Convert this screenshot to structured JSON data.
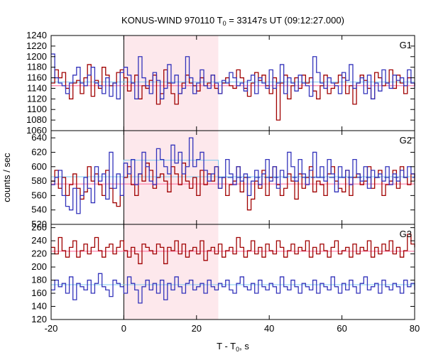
{
  "chart_data": {
    "type": "line",
    "title": {
      "prefix": "KONUS-WIND 970110 T",
      "sub": "0",
      "suffix": " = 33147s UT (09:12:27.000)"
    },
    "xlabel": {
      "prefix": "T - T",
      "sub": "0",
      "suffix": ", s"
    },
    "ylabel": "counts / sec",
    "xlim": [
      -20,
      80
    ],
    "x_ticks": [
      -20,
      0,
      20,
      40,
      60,
      80
    ],
    "highlight_interval": [
      0,
      26
    ],
    "colors": {
      "red": "#a00000",
      "blue": "#3333bb",
      "pink": "#ff6699",
      "cyan": "#7ec8f0",
      "highlight": "#fde8ec"
    },
    "panels": [
      {
        "name": "G1",
        "ylim": [
          1060,
          1240
        ],
        "y_ticks": [
          1060,
          1080,
          1100,
          1120,
          1140,
          1160,
          1180,
          1200,
          1220,
          1240
        ],
        "background_red": 1145,
        "background_blue": 1152,
        "series": [
          {
            "color": "red",
            "x_start": -20,
            "step": 1,
            "values": [
              1150,
              1175,
              1160,
              1170,
              1140,
              1120,
              1150,
              1155,
              1130,
              1160,
              1185,
              1125,
              1155,
              1140,
              1180,
              1165,
              1145,
              1150,
              1170,
              1175,
              1160,
              1135,
              1150,
              1165,
              1120,
              1145,
              1140,
              1155,
              1165,
              1110,
              1130,
              1175,
              1150,
              1130,
              1110,
              1130,
              1150,
              1165,
              1150,
              1145,
              1135,
              1160,
              1145,
              1150,
              1165,
              1140,
              1130,
              1150,
              1160,
              1145,
              1140,
              1175,
              1160,
              1140,
              1125,
              1150,
              1170,
              1155,
              1165,
              1145,
              1130,
              1160,
              1080,
              1150,
              1165,
              1120,
              1145,
              1160,
              1140,
              1165,
              1150,
              1160,
              1135,
              1120,
              1145,
              1165,
              1130,
              1140,
              1150,
              1165,
              1160,
              1130,
              1145,
              1110,
              1150,
              1165,
              1155,
              1140,
              1120,
              1170,
              1160,
              1145,
              1150,
              1175,
              1140,
              1165,
              1150,
              1130,
              1160,
              1150,
              1145
            ]
          },
          {
            "color": "blue",
            "x_start": -20,
            "step": 1,
            "values": [
              1205,
              1160,
              1150,
              1145,
              1130,
              1150,
              1165,
              1180,
              1150,
              1145,
              1165,
              1180,
              1150,
              1145,
              1130,
              1160,
              1125,
              1150,
              1120,
              1170,
              1180,
              1165,
              1150,
              1120,
              1200,
              1160,
              1145,
              1130,
              1170,
              1155,
              1120,
              1140,
              1185,
              1150,
              1165,
              1130,
              1140,
              1200,
              1160,
              1130,
              1150,
              1175,
              1145,
              1140,
              1165,
              1150,
              1130,
              1155,
              1150,
              1170,
              1160,
              1145,
              1150,
              1135,
              1155,
              1165,
              1130,
              1160,
              1150,
              1140,
              1175,
              1140,
              1150,
              1185,
              1130,
              1160,
              1150,
              1135,
              1165,
              1150,
              1145,
              1125,
              1200,
              1170,
              1150,
              1140,
              1160,
              1150,
              1145,
              1130,
              1170,
              1155,
              1185,
              1140,
              1150,
              1160,
              1130,
              1165,
              1120,
              1150,
              1135,
              1175,
              1150,
              1140,
              1165,
              1155,
              1160,
              1145,
              1175,
              1150,
              1140
            ]
          }
        ]
      },
      {
        "name": "G2",
        "ylim": [
          520,
          650
        ],
        "y_ticks": [
          520,
          540,
          560,
          580,
          600,
          620,
          640
        ],
        "background_red": 576,
        "background_blue": 586,
        "blue_step_level": 609,
        "series": [
          {
            "color": "red",
            "x_start": -20,
            "step": 1,
            "values": [
              580,
              595,
              570,
              585,
              560,
              575,
              590,
              570,
              555,
              565,
              600,
              580,
              590,
              575,
              560,
              595,
              570,
              550,
              545,
              560,
              585,
              600,
              575,
              560,
              590,
              580,
              605,
              595,
              570,
              585,
              590,
              580,
              565,
              600,
              590,
              575,
              605,
              580,
              570,
              585,
              560,
              595,
              575,
              590,
              580,
              600,
              570,
              585,
              560,
              575,
              580,
              600,
              565,
              585,
              540,
              555,
              580,
              570,
              595,
              560,
              585,
              600,
              575,
              560,
              570,
              590,
              580,
              555,
              590,
              570,
              585,
              600,
              565,
              580,
              575,
              560,
              590,
              600,
              580,
              570,
              565,
              595,
              560,
              585,
              590,
              575,
              580,
              600,
              570,
              585,
              595,
              560,
              575,
              580,
              595,
              570,
              600,
              585,
              575,
              590,
              580
            ]
          },
          {
            "color": "blue",
            "x_start": -20,
            "step": 1,
            "values": [
              575,
              585,
              595,
              560,
              545,
              540,
              570,
              535,
              560,
              585,
              570,
              550,
              600,
              580,
              590,
              555,
              620,
              570,
              590,
              560,
              605,
              590,
              610,
              575,
              590,
              620,
              600,
              580,
              575,
              625,
              610,
              600,
              590,
              630,
              605,
              620,
              590,
              600,
              640,
              600,
              610,
              620,
              595,
              580,
              590,
              600,
              570,
              585,
              610,
              590,
              575,
              600,
              580,
              590,
              560,
              580,
              595,
              575,
              590,
              610,
              580,
              600,
              570,
              595,
              585,
              620,
              600,
              580,
              610,
              590,
              575,
              595,
              620,
              585,
              600,
              580,
              610,
              590,
              565,
              600,
              585,
              595,
              575,
              610,
              590,
              580,
              600,
              570,
              595,
              585,
              590,
              580,
              600,
              575,
              590,
              580,
              595,
              585,
              600,
              590,
              585
            ]
          }
        ]
      },
      {
        "name": "G3",
        "ylim": [
          120,
          265
        ],
        "y_ticks": [
          120,
          140,
          160,
          180,
          200,
          220,
          240,
          260
        ],
        "background_red": 224,
        "background_blue": 173,
        "series": [
          {
            "color": "red",
            "x_start": -20,
            "step": 1,
            "values": [
              230,
              220,
              245,
              225,
              215,
              230,
              240,
              215,
              225,
              235,
              220,
              230,
              245,
              225,
              215,
              230,
              235,
              220,
              230,
              240,
              225,
              215,
              230,
              220,
              205,
              235,
              230,
              225,
              220,
              235,
              230,
              205,
              230,
              225,
              240,
              220,
              235,
              215,
              225,
              230,
              220,
              240,
              210,
              225,
              230,
              220,
              235,
              215,
              225,
              230,
              220,
              245,
              230,
              215,
              225,
              240,
              220,
              230,
              215,
              235,
              225,
              220,
              240,
              230,
              215,
              225,
              235,
              220,
              230,
              225,
              240,
              215,
              230,
              220,
              235,
              225,
              215,
              230,
              240,
              220,
              225,
              230,
              215,
              235,
              220,
              230,
              225,
              240,
              215,
              230,
              220,
              235,
              225,
              240,
              220,
              230,
              215,
              225,
              250,
              235,
              230
            ]
          },
          {
            "color": "blue",
            "x_start": -20,
            "step": 1,
            "values": [
              165,
              180,
              170,
              175,
              160,
              185,
              150,
              175,
              170,
              165,
              180,
              160,
              175,
              190,
              170,
              165,
              155,
              180,
              175,
              170,
              160,
              185,
              175,
              165,
              145,
              170,
              180,
              165,
              175,
              160,
              180,
              150,
              175,
              165,
              185,
              170,
              160,
              175,
              180,
              165,
              170,
              175,
              160,
              180,
              170,
              165,
              175,
              170,
              180,
              165,
              160,
              175,
              185,
              170,
              165,
              175,
              160,
              180,
              170,
              165,
              175,
              170,
              160,
              185,
              170,
              165,
              180,
              170,
              160,
              175,
              170,
              165,
              180,
              160,
              175,
              170,
              165,
              185,
              170,
              160,
              175,
              165,
              180,
              170,
              160,
              175,
              185,
              165,
              170,
              175,
              160,
              180,
              170,
              165,
              175,
              170,
              160,
              180,
              170,
              175,
              165
            ]
          }
        ]
      }
    ]
  }
}
